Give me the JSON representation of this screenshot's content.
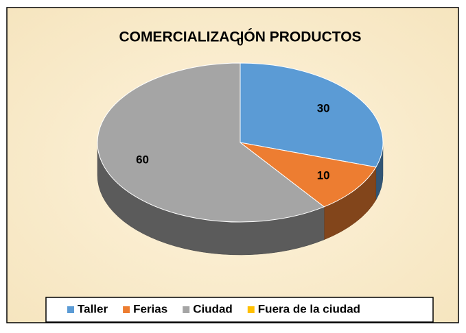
{
  "chart_data": {
    "type": "pie",
    "title": "COMERCIALIZACIÓN PRODUCTOS",
    "categories": [
      "Taller",
      "Ferias",
      "Ciudad",
      "Fuera de la ciudad"
    ],
    "values": [
      30,
      10,
      60,
      0
    ],
    "colors": [
      "#5b9bd5",
      "#ed7d31",
      "#a5a5a5",
      "#ffc000"
    ],
    "legend": "bottom"
  }
}
